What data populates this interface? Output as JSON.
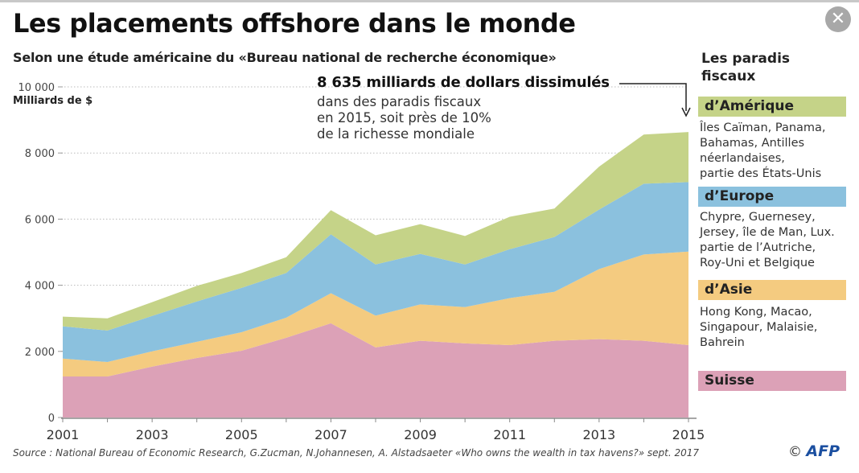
{
  "header": {
    "title": "Les placements offshore dans le monde",
    "subtitle": "Selon une étude américaine du «Bureau national de recherche économique»"
  },
  "close_button": {
    "icon": "close-icon",
    "glyph": "✕"
  },
  "annotation": {
    "headline": "8 635 milliards de dollars dissimulés",
    "lines": [
      "dans des paradis fiscaux",
      "en 2015, soit près de 10%",
      "de la richesse mondiale"
    ]
  },
  "legend": {
    "title_lines": [
      "Les paradis",
      "fiscaux"
    ],
    "entries": [
      {
        "label": "d’Amérique",
        "color": "#c5d388",
        "desc": [
          "Îles Caïman, Panama,",
          "Bahamas, Antilles",
          "néerlandaises,",
          "partie des États-Unis"
        ]
      },
      {
        "label": "d’Europe",
        "color": "#8bc1de",
        "desc": [
          "Chypre, Guernesey,",
          "Jersey, île de Man, Lux.",
          "partie de l’Autriche,",
          "Roy-Uni et Belgique"
        ]
      },
      {
        "label": "d’Asie",
        "color": "#f4cb80",
        "desc": [
          "Hong Kong, Macao,",
          "Singapour, Malaisie,",
          "Bahrein"
        ]
      },
      {
        "label": "Suisse",
        "color": "#dca1b7",
        "desc": []
      }
    ]
  },
  "footer": {
    "source": "Source : National Bureau of Economic Research, G.Zucman, N.Johannesen, A. Alstadsaeter «Who owns the wealth in tax havens?» sept. 2017",
    "copyright": "©",
    "agency": "AFP"
  },
  "chart_data": {
    "type": "area",
    "stacked": true,
    "title": "Les placements offshore dans le monde",
    "ylabel": "Milliards de $",
    "xlabel": "",
    "x": [
      2001,
      2002,
      2003,
      2004,
      2005,
      2006,
      2007,
      2008,
      2009,
      2010,
      2011,
      2012,
      2013,
      2014,
      2015
    ],
    "xticks": [
      2001,
      2003,
      2005,
      2007,
      2009,
      2011,
      2013,
      2015
    ],
    "xtick_labels": [
      "2001",
      "2003",
      "2005",
      "2007",
      "2009",
      "2011",
      "2013",
      "2015"
    ],
    "yticks": [
      0,
      2000,
      4000,
      6000,
      8000,
      10000
    ],
    "ytick_labels": [
      "0",
      "2 000",
      "4 000",
      "6 000",
      "8 000",
      "10 000"
    ],
    "ylim": [
      0,
      10000
    ],
    "xlim": [
      2001,
      2015
    ],
    "grid": "horizontal-dotted",
    "legend_position": "right",
    "series": [
      {
        "name": "Suisse",
        "color": "#dca1b7",
        "values": [
          1240,
          1240,
          1540,
          1800,
          2020,
          2410,
          2850,
          2120,
          2320,
          2240,
          2190,
          2320,
          2370,
          2320,
          2190
        ]
      },
      {
        "name": "d’Asie",
        "color": "#f4cb80",
        "values": [
          540,
          440,
          460,
          490,
          560,
          610,
          910,
          960,
          1100,
          1100,
          1420,
          1480,
          2120,
          2610,
          2830
        ]
      },
      {
        "name": "d’Europe",
        "color": "#8bc1de",
        "values": [
          980,
          950,
          1070,
          1220,
          1340,
          1350,
          1780,
          1550,
          1530,
          1290,
          1480,
          1660,
          1800,
          2140,
          2100
        ]
      },
      {
        "name": "d’Amérique",
        "color": "#c5d388",
        "values": [
          290,
          370,
          420,
          470,
          450,
          480,
          730,
          880,
          900,
          860,
          980,
          860,
          1300,
          1490,
          1515
        ]
      }
    ],
    "annotations": [
      {
        "text": "8 635 milliards de dollars dissimulés",
        "x": 2015,
        "y": 8635
      }
    ]
  }
}
